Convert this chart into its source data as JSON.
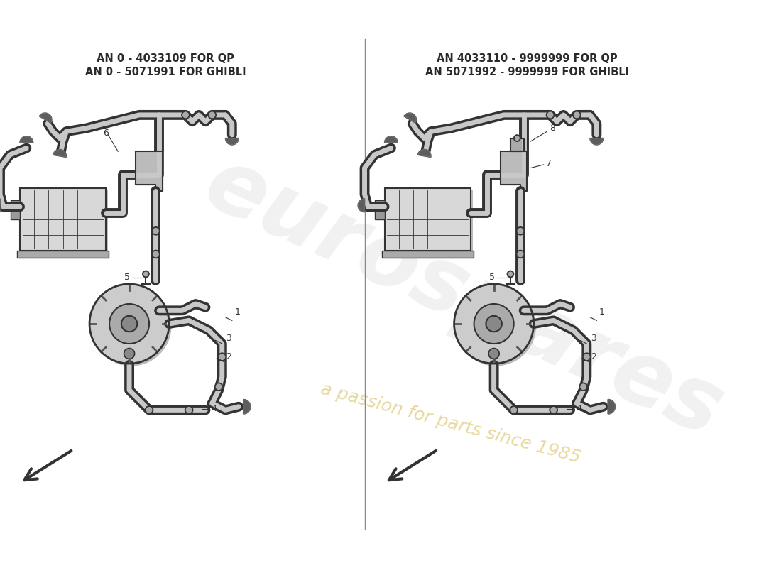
{
  "title_left_line1": "AN 0 - 4033109 FOR QP",
  "title_left_line2": "AN 0 - 5071991 FOR GHIBLI",
  "title_right_line1": "AN 4033110 - 9999999 FOR QP",
  "title_right_line2": "AN 5071992 - 9999999 FOR GHIBLI",
  "bg_color": "#ffffff",
  "line_color": "#2a2a2a",
  "fill_light": "#e8e8e8",
  "fill_mid": "#cccccc",
  "fill_dark": "#aaaaaa",
  "watermark_color": "#d0d0d0",
  "watermark_text": "eurospares",
  "watermark_subtext": "a passion for parts since 1985",
  "title_fontsize": 10.5,
  "label_fontsize": 9,
  "divider_color": "#888888"
}
